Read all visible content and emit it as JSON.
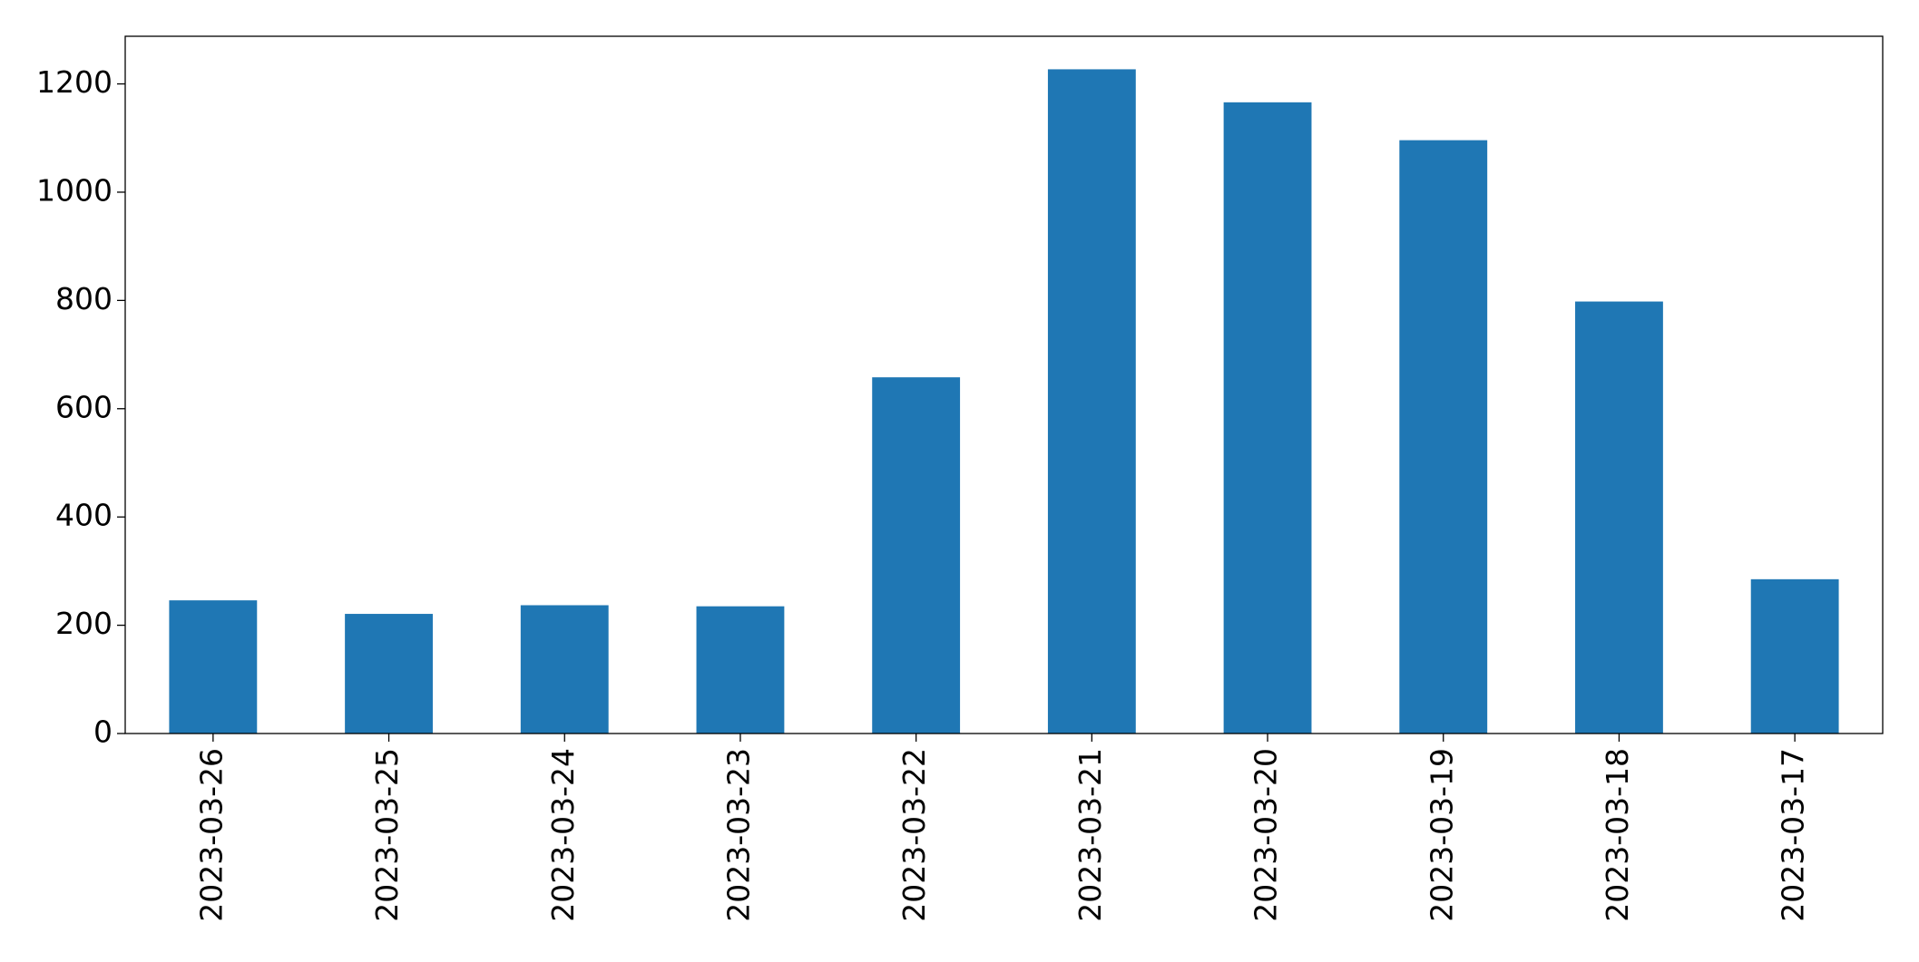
{
  "chart_data": {
    "type": "bar",
    "categories": [
      "2023-03-26",
      "2023-03-25",
      "2023-03-24",
      "2023-03-23",
      "2023-03-22",
      "2023-03-21",
      "2023-03-20",
      "2023-03-19",
      "2023-03-18",
      "2023-03-17"
    ],
    "values": [
      246,
      221,
      237,
      235,
      658,
      1227,
      1166,
      1096,
      798,
      285
    ],
    "color": "#1f77b4",
    "ylim": [
      0,
      1288
    ],
    "yticks": [
      0,
      200,
      400,
      600,
      800,
      1000,
      1200
    ],
    "grid": false
  }
}
